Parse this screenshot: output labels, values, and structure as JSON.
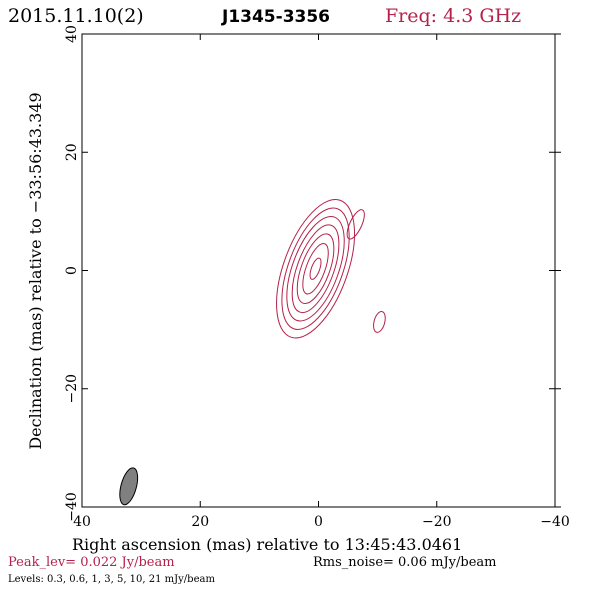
{
  "header": {
    "date": "2015.11.10(2)",
    "source": "J1345-3356",
    "freq": "Freq: 4.3 GHz"
  },
  "footer": {
    "peak": "Peak_lev=  0.022 Jy/beam",
    "rms": "Rms_noise= 0.06 mJy/beam",
    "levels": "Levels: 0.3, 0.6,    1,    3,    5,   10,   21 mJy/beam"
  },
  "colors": {
    "accent": "#b5214b",
    "axis": "#000000",
    "beam_fill": "#808080"
  },
  "chart_data": {
    "type": "contour",
    "xlabel": "Right ascension (mas) relative to 13:45:43.0461",
    "ylabel": "Declination (mas) relative to −33:56:43.349",
    "xlim": [
      40,
      -40
    ],
    "ylim": [
      -40,
      40
    ],
    "x_ticks": [
      40,
      20,
      0,
      -20,
      -40
    ],
    "y_ticks": [
      -40,
      -20,
      0,
      20,
      40
    ],
    "x_tick_labels": [
      "40",
      "20",
      "0",
      "−20",
      "−40"
    ],
    "y_tick_labels": [
      "−40",
      "−20",
      "0",
      "20",
      "40"
    ],
    "contour_levels_mJy": [
      0.3,
      0.6,
      1,
      3,
      5,
      10,
      21
    ],
    "components": [
      {
        "center": [
          0.5,
          0.3
        ],
        "angle_deg": 20,
        "contours": [
          {
            "rx": 5.4,
            "ry": 12.3
          },
          {
            "rx": 4.6,
            "ry": 10.8
          },
          {
            "rx": 3.9,
            "ry": 9.3
          },
          {
            "rx": 3.1,
            "ry": 7.8
          },
          {
            "rx": 2.4,
            "ry": 6.2
          },
          {
            "rx": 1.6,
            "ry": 4.5
          },
          {
            "rx": 0.7,
            "ry": 1.9
          }
        ]
      },
      {
        "center": [
          -6.3,
          7.8
        ],
        "angle_deg": 25,
        "contours": [
          {
            "rx": 1.0,
            "ry": 2.7
          }
        ]
      },
      {
        "center": [
          -10.3,
          -8.7
        ],
        "angle_deg": 15,
        "contours": [
          {
            "rx": 0.9,
            "ry": 1.8
          }
        ]
      }
    ],
    "beam": {
      "center": [
        32.1,
        -36.5
      ],
      "rx": 1.3,
      "ry": 3.2,
      "angle_deg": 15
    }
  }
}
